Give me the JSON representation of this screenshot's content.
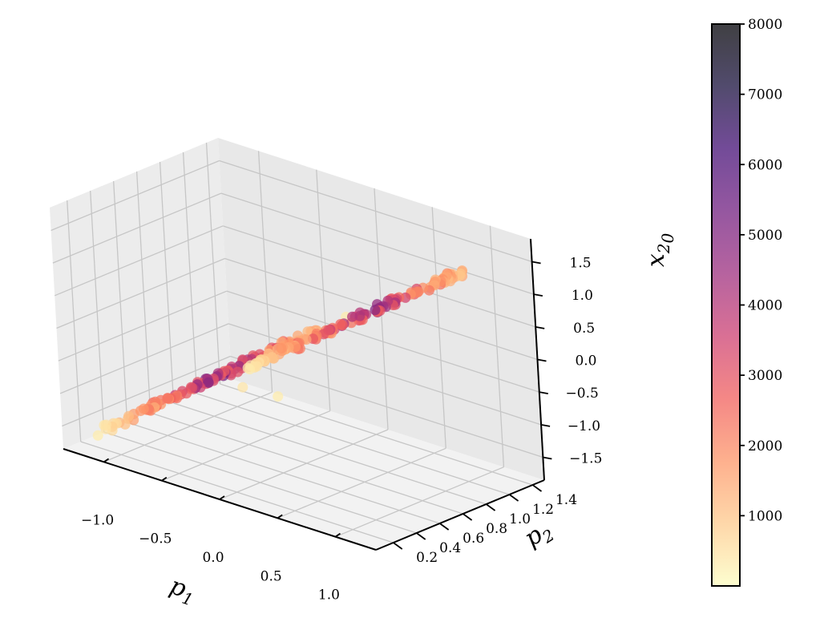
{
  "chart_data": {
    "type": "scatter",
    "projection": "3d",
    "xlabel": "p",
    "xlabel_sub": "1",
    "ylabel": "p",
    "ylabel_sub": "2",
    "zlabel": "x",
    "zlabel_sub": "2",
    "zlabel_subsub": "0",
    "x_ticks": [
      "−1.0",
      "−0.5",
      "0.0",
      "0.5",
      "1.0"
    ],
    "y_ticks": [
      "0.2",
      "0.4",
      "0.6",
      "0.8",
      "1.0",
      "1.2",
      "1.4"
    ],
    "z_ticks": [
      "−1.5",
      "−1.0",
      "−0.5",
      "0.0",
      "0.5",
      "1.0",
      "1.5"
    ],
    "xlim": [
      -1.35,
      1.35
    ],
    "ylim": [
      0.05,
      1.5
    ],
    "zlim": [
      -1.85,
      1.85
    ],
    "grid": true,
    "colormap": "magma_r",
    "colorbar": {
      "min": 0,
      "max": 8000,
      "ticks": [
        "1000",
        "2000",
        "3000",
        "4000",
        "5000",
        "6000",
        "7000",
        "8000"
      ],
      "tick_values": [
        1000,
        2000,
        3000,
        4000,
        5000,
        6000,
        7000,
        8000
      ],
      "stops": [
        "#fcfdbf",
        "#feca8d",
        "#fd9668",
        "#f1605d",
        "#cd4071",
        "#9e2f7f",
        "#721f81",
        "#440f76",
        "#180f3d",
        "#000004"
      ],
      "alpha": 0.75
    },
    "clusters": [
      {
        "from": {
          "x": -1.15,
          "y": 0.2,
          "z": -1.55
        },
        "to": {
          "x": -0.1,
          "y": 1.05,
          "z": -0.05
        },
        "count": 130,
        "color_range": [
          300,
          5800
        ]
      },
      {
        "from": {
          "x": 0.15,
          "y": 0.22,
          "z": 0.15
        },
        "to": {
          "x": 1.2,
          "y": 1.08,
          "z": 1.6
        },
        "count": 130,
        "color_range": [
          300,
          5500
        ]
      }
    ],
    "outliers": [
      {
        "x": -1.3,
        "y": 0.3,
        "z": -1.8,
        "c": 300
      },
      {
        "x": 0.05,
        "y": 0.25,
        "z": -0.25,
        "c": 400
      },
      {
        "x": 0.0,
        "y": 1.2,
        "z": 0.1,
        "c": 300
      },
      {
        "x": 0.25,
        "y": 0.35,
        "z": -0.35,
        "c": 300
      }
    ]
  }
}
